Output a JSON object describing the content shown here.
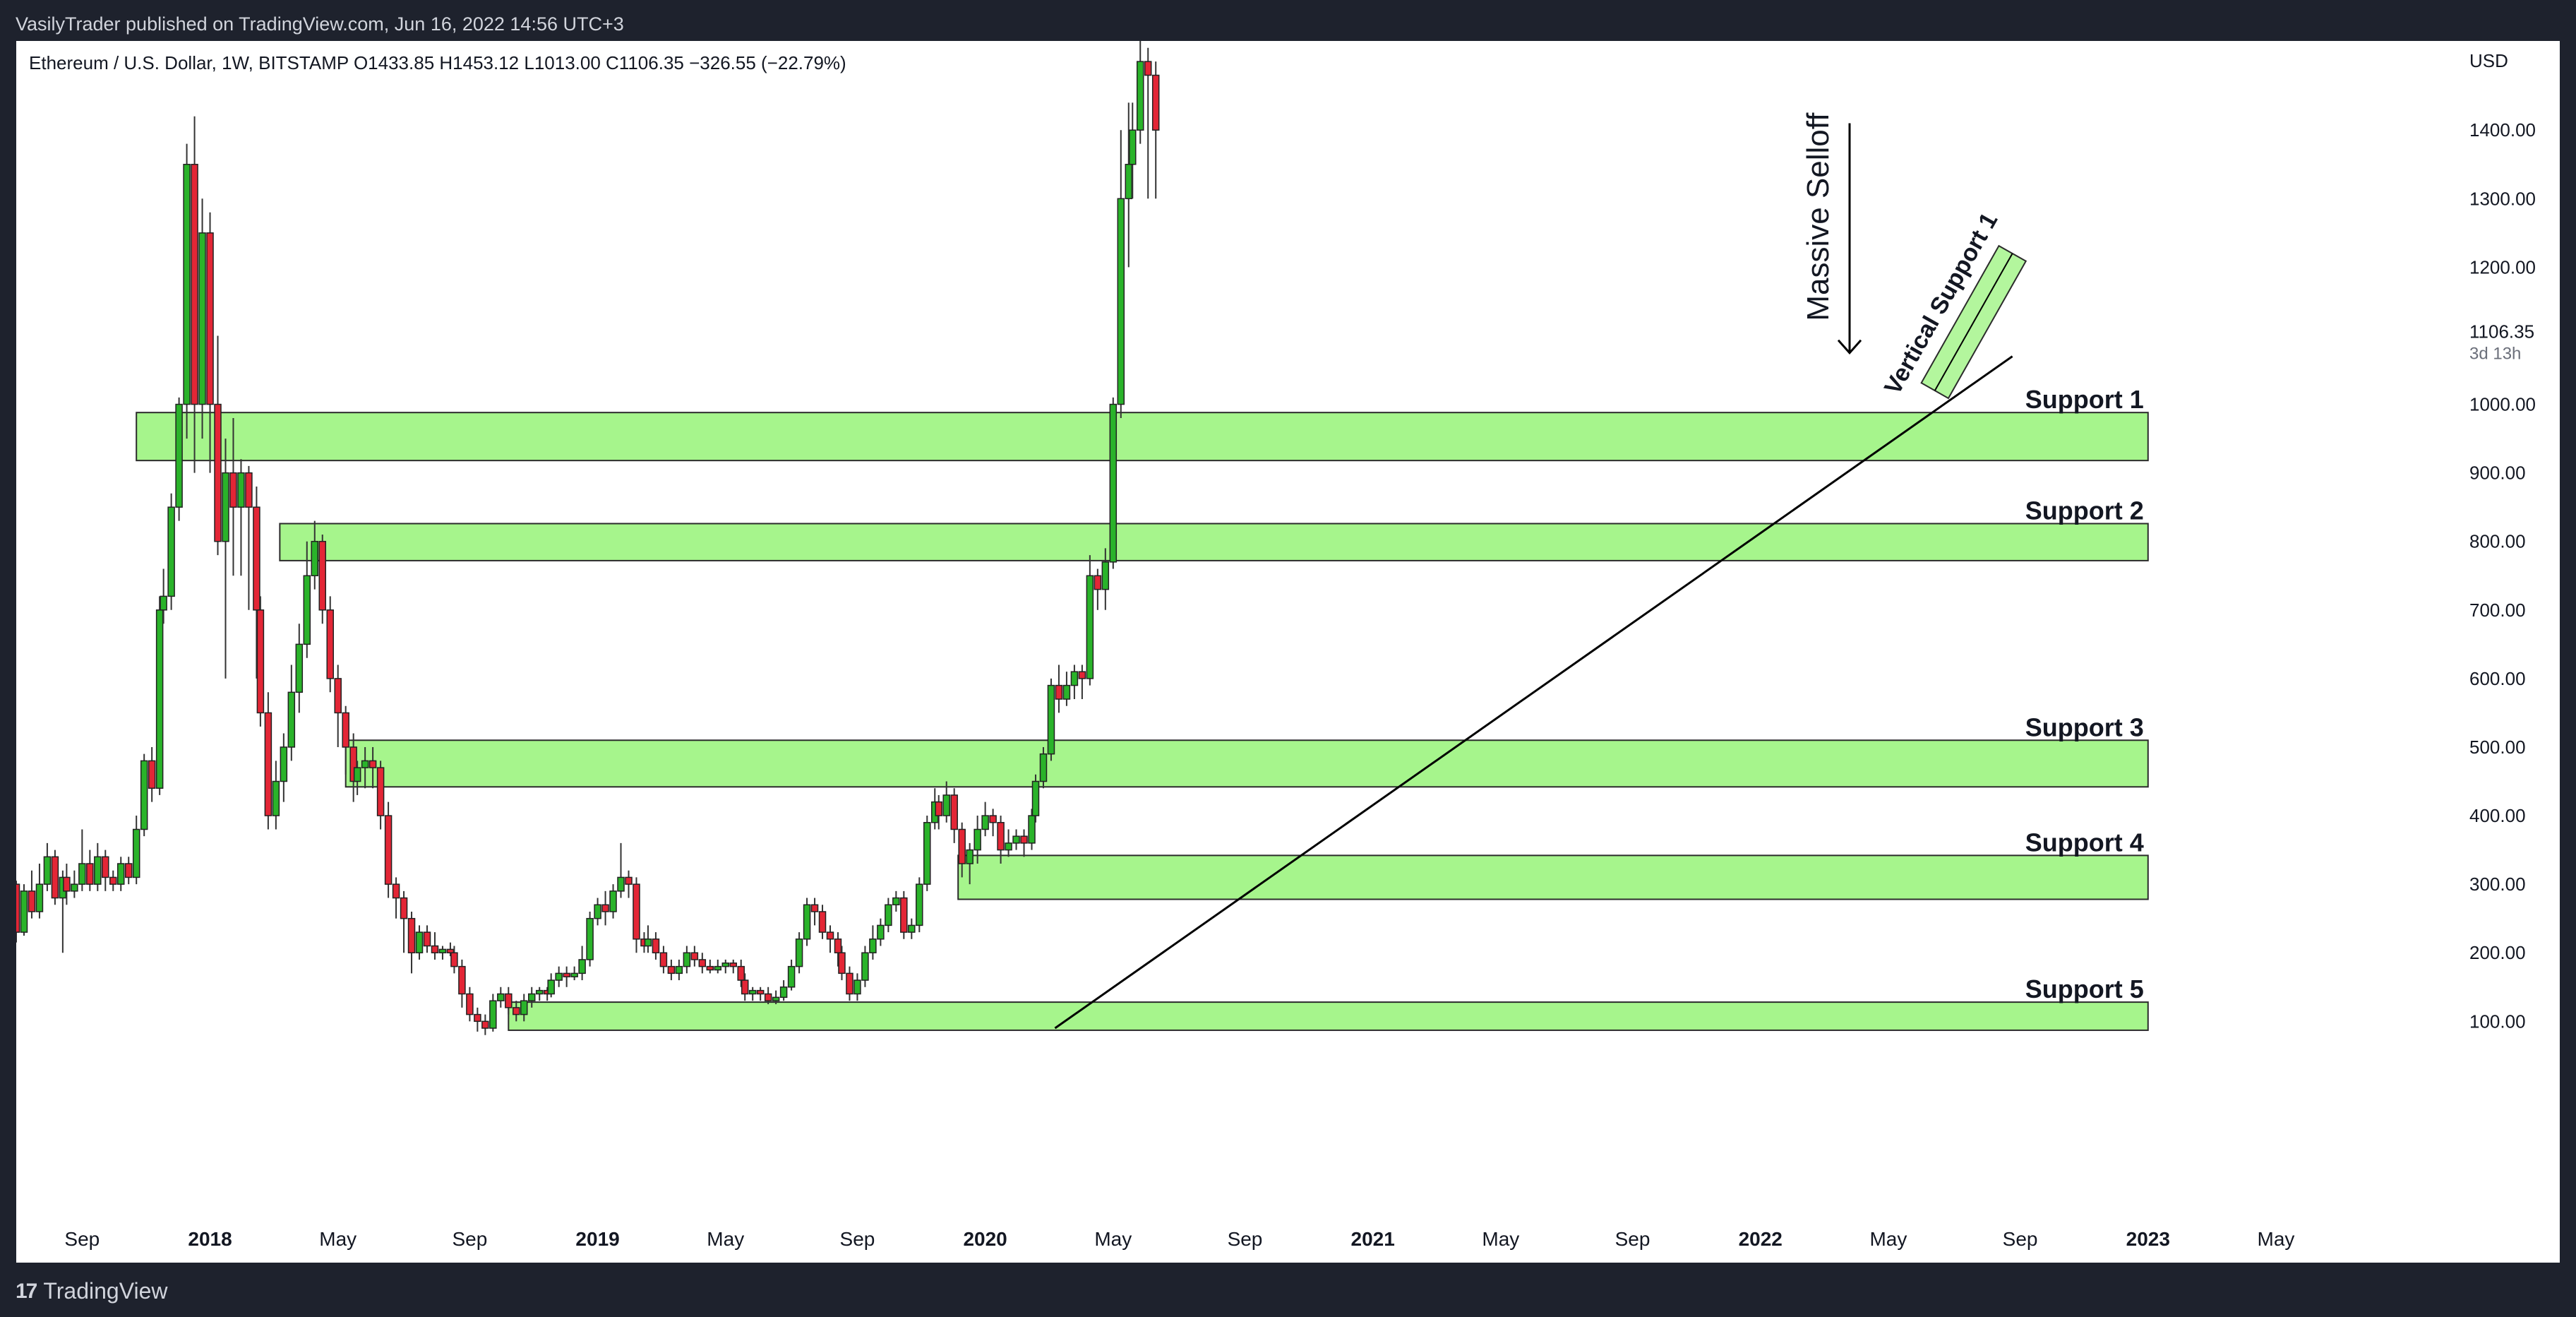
{
  "header": {
    "publisher_line": "VasilyTrader published on TradingView.com, Jun 16, 2022 14:56 UTC+3"
  },
  "footer": {
    "brand": "TradingView",
    "logo_icon": "tradingview-logo-icon"
  },
  "chart_data": {
    "type": "candlestick",
    "symbol_line": "Ethereum / U.S. Dollar, 1W, BITSTAMP  O1433.85  H1453.12  L1013.00  C1106.35  −326.55 (−22.79%)",
    "currency": "USD",
    "last_price": {
      "label": "1106.35",
      "countdown": "3d 13h",
      "value": 1106.35
    },
    "ylim": [
      -185,
      1530
    ],
    "xlim": [
      2017.5,
      2023.82
    ],
    "y_ticks": [
      {
        "v": 1400,
        "label": "1400.00"
      },
      {
        "v": 1300,
        "label": "1300.00"
      },
      {
        "v": 1200,
        "label": "1200.00"
      },
      {
        "v": 1000,
        "label": "1000.00"
      },
      {
        "v": 900,
        "label": "900.00"
      },
      {
        "v": 800,
        "label": "800.00"
      },
      {
        "v": 700,
        "label": "700.00"
      },
      {
        "v": 600,
        "label": "600.00"
      },
      {
        "v": 500,
        "label": "500.00"
      },
      {
        "v": 400,
        "label": "400.00"
      },
      {
        "v": 300,
        "label": "300.00"
      },
      {
        "v": 200,
        "label": "200.00"
      },
      {
        "v": 100,
        "label": "100.00"
      }
    ],
    "x_ticks": [
      {
        "t": 2017.67,
        "label": "Sep",
        "bold": false
      },
      {
        "t": 2018.0,
        "label": "2018",
        "bold": true
      },
      {
        "t": 2018.33,
        "label": "May",
        "bold": false
      },
      {
        "t": 2018.67,
        "label": "Sep",
        "bold": false
      },
      {
        "t": 2019.0,
        "label": "2019",
        "bold": true
      },
      {
        "t": 2019.33,
        "label": "May",
        "bold": false
      },
      {
        "t": 2019.67,
        "label": "Sep",
        "bold": false
      },
      {
        "t": 2020.0,
        "label": "2020",
        "bold": true
      },
      {
        "t": 2020.33,
        "label": "May",
        "bold": false
      },
      {
        "t": 2020.67,
        "label": "Sep",
        "bold": false
      },
      {
        "t": 2021.0,
        "label": "2021",
        "bold": true
      },
      {
        "t": 2021.33,
        "label": "May",
        "bold": false
      },
      {
        "t": 2021.67,
        "label": "Sep",
        "bold": false
      },
      {
        "t": 2022.0,
        "label": "2022",
        "bold": true
      },
      {
        "t": 2022.33,
        "label": "May",
        "bold": false
      },
      {
        "t": 2022.67,
        "label": "Sep",
        "bold": false
      },
      {
        "t": 2023.0,
        "label": "2023",
        "bold": true
      },
      {
        "t": 2023.33,
        "label": "May",
        "bold": false
      }
    ],
    "zones": [
      {
        "label": "Support 1",
        "t0": 2017.81,
        "t1": 2023.0,
        "low": 918,
        "high": 988
      },
      {
        "label": "Support 2",
        "t0": 2018.18,
        "t1": 2023.0,
        "low": 772,
        "high": 826
      },
      {
        "label": "Support 3",
        "t0": 2018.35,
        "t1": 2023.0,
        "low": 442,
        "high": 510
      },
      {
        "label": "Support 4",
        "t0": 2019.93,
        "t1": 2023.0,
        "low": 278,
        "high": 342
      },
      {
        "label": "Support 5",
        "t0": 2018.77,
        "t1": 2023.0,
        "low": 87,
        "high": 128
      }
    ],
    "trendline": {
      "from": {
        "t": 2020.18,
        "v": 90
      },
      "to": {
        "t": 2022.65,
        "v": 1070
      }
    },
    "channel": {
      "label": "Vertical Support 1",
      "from": {
        "t": 2022.45,
        "v": 1020
      },
      "to": {
        "t": 2022.65,
        "v": 1220
      }
    },
    "annotation": {
      "text": "Massive Selloff",
      "t": 2022.23,
      "v_top": 1410,
      "v_bottom": 1075
    },
    "colors": {
      "up": "#2ab32a",
      "down": "#e32636",
      "zone_fill": "#a6f58c",
      "zone_stroke": "#2b2b2b",
      "text": "#131722",
      "background": "#ffffff"
    },
    "candles": [
      [
        2017.5,
        300,
        230,
        305,
        215
      ],
      [
        2017.52,
        230,
        290,
        300,
        225
      ],
      [
        2017.54,
        290,
        260,
        320,
        250
      ],
      [
        2017.56,
        260,
        300,
        330,
        250
      ],
      [
        2017.58,
        300,
        340,
        360,
        290
      ],
      [
        2017.6,
        340,
        280,
        350,
        270
      ],
      [
        2017.62,
        280,
        310,
        320,
        200
      ],
      [
        2017.63,
        310,
        290,
        330,
        270
      ],
      [
        2017.65,
        290,
        300,
        320,
        280
      ],
      [
        2017.67,
        300,
        330,
        380,
        290
      ],
      [
        2017.69,
        330,
        300,
        350,
        290
      ],
      [
        2017.71,
        300,
        340,
        360,
        290
      ],
      [
        2017.73,
        340,
        310,
        350,
        290
      ],
      [
        2017.75,
        310,
        300,
        320,
        290
      ],
      [
        2017.77,
        300,
        330,
        340,
        290
      ],
      [
        2017.79,
        330,
        310,
        340,
        300
      ],
      [
        2017.81,
        310,
        380,
        400,
        300
      ],
      [
        2017.83,
        380,
        480,
        490,
        370
      ],
      [
        2017.85,
        480,
        440,
        500,
        420
      ],
      [
        2017.87,
        440,
        700,
        720,
        430
      ],
      [
        2017.88,
        700,
        720,
        760,
        680
      ],
      [
        2017.9,
        720,
        850,
        870,
        700
      ],
      [
        2017.92,
        850,
        1000,
        1010,
        830
      ],
      [
        2017.94,
        1000,
        1350,
        1380,
        950
      ],
      [
        2017.96,
        1350,
        1000,
        1420,
        900
      ],
      [
        2017.98,
        1000,
        1250,
        1300,
        950
      ],
      [
        2018.0,
        1250,
        1000,
        1280,
        900
      ],
      [
        2018.02,
        1000,
        800,
        1100,
        780
      ],
      [
        2018.04,
        800,
        900,
        950,
        600
      ],
      [
        2018.06,
        900,
        850,
        980,
        750
      ],
      [
        2018.08,
        850,
        900,
        920,
        750
      ],
      [
        2018.1,
        900,
        850,
        910,
        700
      ],
      [
        2018.12,
        850,
        700,
        880,
        600
      ],
      [
        2018.13,
        700,
        550,
        720,
        530
      ],
      [
        2018.15,
        550,
        400,
        580,
        380
      ],
      [
        2018.17,
        400,
        450,
        480,
        380
      ],
      [
        2018.19,
        450,
        500,
        520,
        420
      ],
      [
        2018.21,
        500,
        580,
        620,
        480
      ],
      [
        2018.23,
        580,
        650,
        680,
        550
      ],
      [
        2018.25,
        650,
        750,
        800,
        630
      ],
      [
        2018.27,
        750,
        800,
        830,
        730
      ],
      [
        2018.29,
        800,
        700,
        810,
        680
      ],
      [
        2018.31,
        700,
        600,
        720,
        580
      ],
      [
        2018.33,
        600,
        550,
        620,
        500
      ],
      [
        2018.35,
        550,
        500,
        560,
        460
      ],
      [
        2018.37,
        500,
        450,
        520,
        420
      ],
      [
        2018.38,
        450,
        470,
        480,
        430
      ],
      [
        2018.4,
        470,
        480,
        500,
        440
      ],
      [
        2018.42,
        480,
        470,
        500,
        440
      ],
      [
        2018.44,
        470,
        400,
        480,
        380
      ],
      [
        2018.46,
        400,
        300,
        420,
        280
      ],
      [
        2018.48,
        300,
        280,
        310,
        250
      ],
      [
        2018.5,
        280,
        250,
        290,
        200
      ],
      [
        2018.52,
        250,
        200,
        260,
        170
      ],
      [
        2018.54,
        200,
        230,
        240,
        190
      ],
      [
        2018.56,
        230,
        210,
        240,
        200
      ],
      [
        2018.58,
        210,
        200,
        230,
        190
      ],
      [
        2018.6,
        200,
        205,
        210,
        190
      ],
      [
        2018.62,
        205,
        200,
        215,
        195
      ],
      [
        2018.63,
        200,
        180,
        210,
        170
      ],
      [
        2018.65,
        180,
        140,
        190,
        120
      ],
      [
        2018.67,
        140,
        110,
        150,
        100
      ],
      [
        2018.69,
        110,
        100,
        120,
        85
      ],
      [
        2018.71,
        100,
        90,
        110,
        80
      ],
      [
        2018.73,
        90,
        130,
        140,
        85
      ],
      [
        2018.75,
        130,
        140,
        150,
        120
      ],
      [
        2018.77,
        140,
        120,
        150,
        110
      ],
      [
        2018.79,
        120,
        110,
        130,
        100
      ],
      [
        2018.81,
        110,
        130,
        140,
        100
      ],
      [
        2018.83,
        130,
        140,
        150,
        120
      ],
      [
        2018.85,
        140,
        145,
        150,
        130
      ],
      [
        2018.87,
        145,
        140,
        150,
        130
      ],
      [
        2018.88,
        140,
        160,
        170,
        135
      ],
      [
        2018.9,
        160,
        170,
        180,
        150
      ],
      [
        2018.92,
        170,
        165,
        180,
        150
      ],
      [
        2018.94,
        165,
        170,
        180,
        160
      ],
      [
        2018.96,
        170,
        190,
        210,
        160
      ],
      [
        2018.98,
        190,
        250,
        260,
        180
      ],
      [
        2019.0,
        250,
        270,
        280,
        240
      ],
      [
        2019.02,
        270,
        260,
        290,
        240
      ],
      [
        2019.04,
        260,
        290,
        300,
        250
      ],
      [
        2019.06,
        290,
        310,
        360,
        280
      ],
      [
        2019.08,
        310,
        300,
        320,
        280
      ],
      [
        2019.1,
        300,
        220,
        310,
        200
      ],
      [
        2019.12,
        220,
        210,
        230,
        200
      ],
      [
        2019.13,
        210,
        220,
        240,
        200
      ],
      [
        2019.15,
        220,
        200,
        230,
        190
      ],
      [
        2019.17,
        200,
        180,
        210,
        170
      ],
      [
        2019.19,
        180,
        170,
        190,
        160
      ],
      [
        2019.21,
        170,
        180,
        190,
        160
      ],
      [
        2019.23,
        180,
        200,
        210,
        170
      ],
      [
        2019.25,
        200,
        190,
        210,
        180
      ],
      [
        2019.27,
        190,
        180,
        200,
        170
      ],
      [
        2019.29,
        180,
        175,
        190,
        170
      ],
      [
        2019.31,
        175,
        180,
        190,
        170
      ],
      [
        2019.33,
        180,
        185,
        190,
        170
      ],
      [
        2019.35,
        185,
        180,
        190,
        170
      ],
      [
        2019.37,
        180,
        160,
        190,
        150
      ],
      [
        2019.38,
        160,
        140,
        170,
        130
      ],
      [
        2019.4,
        140,
        145,
        150,
        130
      ],
      [
        2019.42,
        145,
        140,
        150,
        130
      ],
      [
        2019.44,
        140,
        130,
        150,
        125
      ],
      [
        2019.46,
        130,
        135,
        145,
        125
      ],
      [
        2019.48,
        135,
        150,
        160,
        130
      ],
      [
        2019.5,
        150,
        180,
        190,
        145
      ],
      [
        2019.52,
        180,
        220,
        230,
        170
      ],
      [
        2019.54,
        220,
        270,
        280,
        210
      ],
      [
        2019.56,
        270,
        260,
        280,
        240
      ],
      [
        2019.58,
        260,
        230,
        270,
        220
      ],
      [
        2019.6,
        230,
        220,
        240,
        200
      ],
      [
        2019.62,
        220,
        200,
        230,
        180
      ],
      [
        2019.63,
        200,
        170,
        210,
        160
      ],
      [
        2019.65,
        170,
        140,
        180,
        130
      ],
      [
        2019.67,
        140,
        160,
        170,
        130
      ],
      [
        2019.69,
        160,
        200,
        210,
        150
      ],
      [
        2019.71,
        200,
        220,
        240,
        190
      ],
      [
        2019.73,
        220,
        240,
        250,
        210
      ],
      [
        2019.75,
        240,
        270,
        280,
        230
      ],
      [
        2019.77,
        270,
        280,
        290,
        260
      ],
      [
        2019.79,
        280,
        230,
        290,
        220
      ],
      [
        2019.81,
        230,
        240,
        250,
        220
      ],
      [
        2019.83,
        240,
        300,
        310,
        230
      ],
      [
        2019.85,
        300,
        390,
        400,
        290
      ],
      [
        2019.87,
        390,
        420,
        440,
        380
      ],
      [
        2019.88,
        420,
        400,
        430,
        380
      ],
      [
        2019.9,
        400,
        430,
        450,
        390
      ],
      [
        2019.92,
        430,
        380,
        440,
        360
      ],
      [
        2019.94,
        380,
        330,
        390,
        310
      ],
      [
        2019.96,
        330,
        350,
        360,
        300
      ],
      [
        2019.98,
        350,
        380,
        400,
        330
      ],
      [
        2020.0,
        380,
        400,
        420,
        370
      ],
      [
        2020.02,
        400,
        390,
        410,
        370
      ],
      [
        2020.04,
        390,
        350,
        400,
        330
      ],
      [
        2020.06,
        350,
        360,
        380,
        340
      ],
      [
        2020.08,
        360,
        370,
        380,
        350
      ],
      [
        2020.1,
        370,
        360,
        380,
        340
      ],
      [
        2020.12,
        360,
        400,
        410,
        350
      ],
      [
        2020.13,
        400,
        450,
        460,
        390
      ],
      [
        2020.15,
        450,
        490,
        500,
        440
      ],
      [
        2020.17,
        490,
        590,
        600,
        480
      ],
      [
        2020.19,
        590,
        570,
        620,
        550
      ],
      [
        2020.21,
        570,
        590,
        610,
        560
      ],
      [
        2020.23,
        590,
        610,
        620,
        570
      ],
      [
        2020.25,
        610,
        600,
        620,
        570
      ],
      [
        2020.27,
        600,
        750,
        780,
        590
      ],
      [
        2020.29,
        750,
        730,
        760,
        700
      ],
      [
        2020.31,
        730,
        770,
        790,
        700
      ],
      [
        2020.33,
        770,
        1000,
        1010,
        760
      ],
      [
        2020.35,
        1000,
        1300,
        1400,
        980
      ],
      [
        2020.37,
        1300,
        1350,
        1440,
        1200
      ],
      [
        2020.38,
        1350,
        1400,
        1440,
        1300
      ],
      [
        2020.4,
        1400,
        1500,
        1530,
        1380
      ],
      [
        2020.42,
        1500,
        1480,
        1520,
        1300
      ],
      [
        2020.44,
        1480,
        1400,
        1500,
        1300
      ]
    ]
  }
}
